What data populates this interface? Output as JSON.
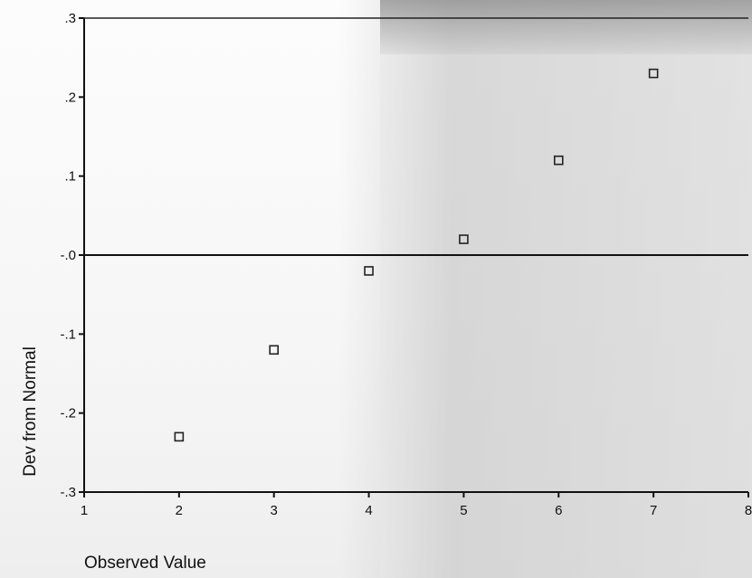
{
  "chart_data": {
    "type": "scatter",
    "title": "",
    "xlabel": "Observed Value",
    "ylabel": "Dev from Normal",
    "xlim": [
      1,
      8
    ],
    "ylim": [
      -0.3,
      0.3
    ],
    "x_ticks": [
      "1",
      "2",
      "3",
      "4",
      "5",
      "6",
      "7",
      "8"
    ],
    "y_ticks": [
      ".3",
      ".2",
      ".1",
      "-.0",
      "-.1",
      "-.2",
      "-.3"
    ],
    "reference_line_y": 0,
    "marker": "open-square",
    "series": [
      {
        "x": [
          2,
          3,
          4,
          5,
          6,
          7
        ],
        "y": [
          -0.23,
          -0.12,
          -0.02,
          0.02,
          0.12,
          0.23
        ]
      }
    ],
    "grid": false,
    "legend": "none"
  }
}
